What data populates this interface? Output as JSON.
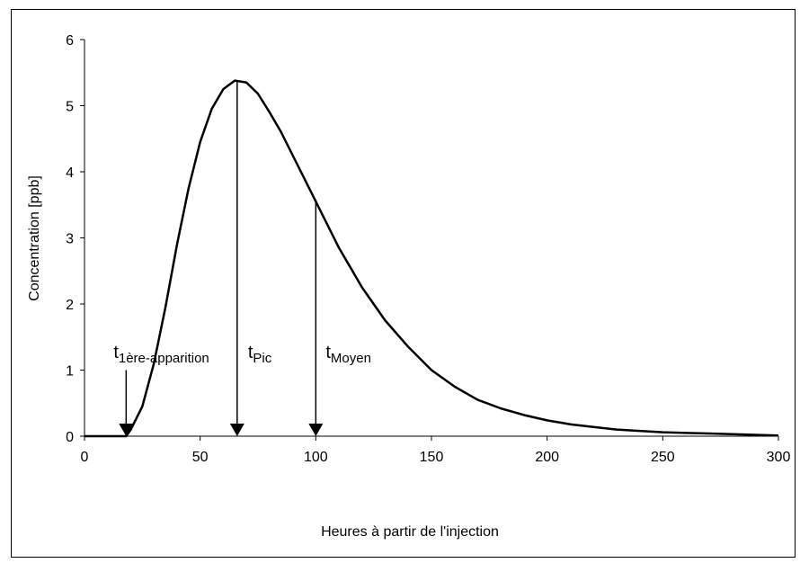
{
  "chart_data": {
    "type": "line",
    "xlabel": "Heures à partir de l'injection",
    "ylabel": "Concentration [ppb]",
    "x": [
      0,
      10,
      15,
      18,
      20,
      25,
      30,
      35,
      40,
      45,
      50,
      55,
      60,
      65,
      70,
      75,
      80,
      85,
      90,
      95,
      100,
      110,
      120,
      130,
      140,
      150,
      160,
      170,
      180,
      190,
      200,
      210,
      220,
      230,
      240,
      250,
      260,
      270,
      280,
      290,
      300
    ],
    "series": [
      {
        "color": "#000000",
        "values": [
          0,
          0,
          0,
          0,
          0.1,
          0.45,
          1.1,
          1.95,
          2.9,
          3.75,
          4.45,
          4.95,
          5.25,
          5.38,
          5.35,
          5.18,
          4.9,
          4.6,
          4.25,
          3.9,
          3.55,
          2.85,
          2.25,
          1.75,
          1.35,
          1.0,
          0.75,
          0.55,
          0.42,
          0.32,
          0.24,
          0.18,
          0.14,
          0.1,
          0.08,
          0.06,
          0.05,
          0.04,
          0.03,
          0.02,
          0.01
        ]
      }
    ],
    "xlim": [
      0,
      300
    ],
    "xticks": [
      0,
      50,
      100,
      150,
      200,
      250,
      300
    ],
    "ylim": [
      0,
      6
    ],
    "yticks": [
      0,
      1,
      2,
      3,
      4,
      5,
      6
    ],
    "grid": false,
    "annotations": [
      {
        "text": "t",
        "subscript": "1ère-apparition",
        "x": 18,
        "y": 1.0
      },
      {
        "text": "t",
        "subscript": "Pic",
        "x": 66,
        "y": 5.38
      },
      {
        "text": "t",
        "subscript": "Moyen",
        "x": 100,
        "y": 3.58
      }
    ]
  }
}
